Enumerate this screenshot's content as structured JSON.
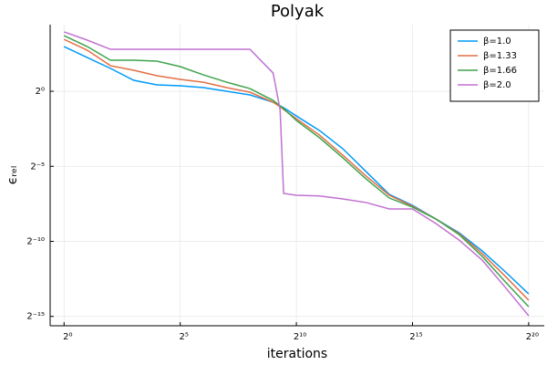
{
  "chart_data": {
    "type": "line",
    "title": "Polyak",
    "x_label": "iterations",
    "y_label": "ϵᵣₑₗ",
    "log_x": true,
    "log_y": true,
    "grid": true,
    "legend_position": "top-right",
    "xlim": [
      0.66,
      1670000
    ],
    "ylim": [
      1.98e-05,
      21.7
    ],
    "xticks": [
      {
        "value": 1,
        "label": "2⁰"
      },
      {
        "value": 32,
        "label": "2⁵"
      },
      {
        "value": 1024,
        "label": "2¹⁰"
      },
      {
        "value": 32768,
        "label": "2¹⁵"
      },
      {
        "value": 1048576,
        "label": "2²⁰"
      }
    ],
    "yticks": [
      {
        "value": 1,
        "label": "2⁰"
      },
      {
        "value": 0.03125,
        "label": "2⁻⁵"
      },
      {
        "value": 0.0009765625,
        "label": "2⁻¹⁰"
      },
      {
        "value": 3.0517578125e-05,
        "label": "2⁻¹⁵"
      }
    ],
    "x": [
      1,
      2,
      4,
      8,
      16,
      32,
      64,
      128,
      256,
      512,
      630,
      700,
      1024,
      2048,
      4096,
      8192,
      16384,
      32768,
      65536,
      131072,
      262144,
      524288,
      1048576
    ],
    "series": [
      {
        "name": "β=1.0",
        "color": "#009af9",
        "values": [
          7.88,
          4.75,
          2.87,
          1.66,
          1.343,
          1.288,
          1.183,
          1,
          0.845,
          0.603,
          0.51,
          0.469,
          0.32,
          0.163,
          0.0703,
          0.0245,
          0.00855,
          0.00516,
          0.00275,
          0.00146,
          0.000627,
          0.000238,
          8.63e-05
        ]
      },
      {
        "name": "β=1.33",
        "color": "#e26f46",
        "values": [
          11.0,
          6.66,
          3.25,
          2.64,
          2.05,
          1.73,
          1.52,
          1.183,
          0.959,
          0.603,
          0.489,
          0.43,
          0.282,
          0.132,
          0.0523,
          0.0199,
          0.0082,
          0.00495,
          0.00275,
          0.0014,
          0.000555,
          0.000193,
          6.45e-05
        ]
      },
      {
        "name": "β=1.66",
        "color": "#3da44d",
        "values": [
          13.07,
          7.88,
          4.19,
          4.19,
          4.02,
          3.12,
          2.13,
          1.52,
          1.135,
          0.656,
          0.51,
          0.449,
          0.26,
          0.1166,
          0.0462,
          0.0175,
          0.00722,
          0.00475,
          0.00275,
          0.00134,
          0.000488,
          0.00015,
          4.78e-05
        ]
      },
      {
        "name": "β=2.0",
        "color": "#c271d2",
        "values": [
          15.5,
          10.6,
          6.95,
          6.95,
          6.95,
          6.95,
          6.95,
          6.95,
          6.95,
          2.32,
          0.43,
          0.00893,
          0.0082,
          0.00794,
          0.00692,
          0.00587,
          0.00437,
          0.00437,
          0.00223,
          0.00104,
          0.00041,
          0.000116,
          3.15e-05
        ]
      }
    ]
  }
}
